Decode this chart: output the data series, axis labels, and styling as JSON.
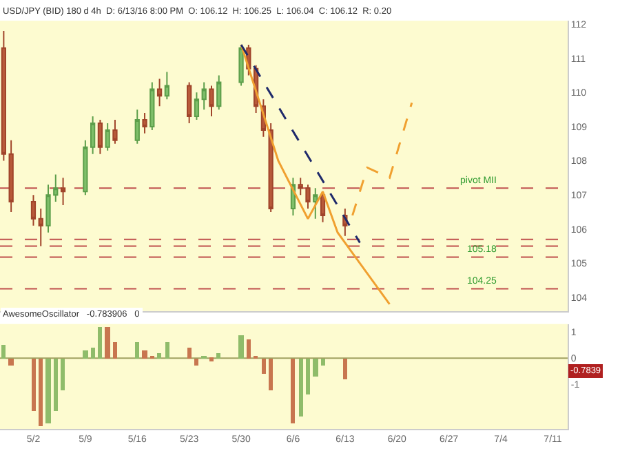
{
  "chart_data": [
    {
      "type": "candlestick",
      "title": "USD/JPY (BID) 180 d 4h  D: 6/13/16 8:00 PM  O: 106.12  H: 106.25  L: 106.04  C: 106.12  R: 0.20",
      "x": [
        "--04-28",
        "--04-29",
        "--05-02",
        "--05-03",
        "--05-04",
        "--05-05",
        "--05-06",
        "--05-09",
        "--05-10",
        "--05-11",
        "--05-12",
        "--05-13",
        "--05-16",
        "--05-17",
        "--05-18",
        "--05-19",
        "--05-20",
        "--05-23",
        "--05-24",
        "--05-25",
        "--05-26",
        "--05-27",
        "--05-30",
        "--05-31",
        "--06-01",
        "--06-02",
        "--06-03",
        "--06-06",
        "--06-07",
        "--06-08",
        "--06-09",
        "--06-10",
        "--06-13"
      ],
      "ohlc": [
        [
          111.3,
          111.8,
          108.0,
          108.2
        ],
        [
          108.2,
          108.6,
          106.5,
          106.8
        ],
        [
          106.8,
          107.0,
          106.1,
          106.3
        ],
        [
          106.3,
          106.6,
          105.5,
          106.1
        ],
        [
          106.1,
          107.3,
          105.9,
          107.0
        ],
        [
          107.0,
          107.6,
          106.8,
          107.2
        ],
        [
          107.2,
          107.5,
          106.7,
          107.1
        ],
        [
          107.1,
          108.6,
          107.0,
          108.4
        ],
        [
          108.4,
          109.3,
          108.2,
          109.1
        ],
        [
          109.1,
          109.2,
          108.2,
          108.4
        ],
        [
          108.4,
          109.1,
          108.3,
          108.9
        ],
        [
          108.9,
          109.2,
          108.5,
          108.6
        ],
        [
          108.6,
          109.5,
          108.5,
          109.2
        ],
        [
          109.2,
          109.4,
          108.8,
          109.0
        ],
        [
          109.0,
          110.3,
          108.9,
          110.1
        ],
        [
          110.1,
          110.4,
          109.6,
          109.9
        ],
        [
          109.9,
          110.6,
          109.8,
          110.2
        ],
        [
          110.2,
          110.3,
          109.1,
          109.3
        ],
        [
          109.3,
          110.0,
          109.2,
          109.8
        ],
        [
          109.8,
          110.3,
          109.5,
          110.1
        ],
        [
          110.1,
          110.2,
          109.3,
          109.6
        ],
        [
          109.6,
          110.5,
          109.5,
          110.3
        ],
        [
          110.3,
          111.4,
          110.2,
          111.3
        ],
        [
          111.3,
          111.4,
          110.5,
          110.7
        ],
        [
          110.7,
          110.8,
          109.4,
          109.6
        ],
        [
          109.6,
          109.8,
          108.7,
          108.9
        ],
        [
          108.9,
          109.1,
          106.5,
          106.6
        ],
        [
          106.6,
          107.5,
          106.4,
          107.3
        ],
        [
          107.3,
          107.5,
          107.0,
          107.2
        ],
        [
          107.2,
          107.3,
          106.6,
          106.8
        ],
        [
          106.8,
          107.2,
          106.3,
          107.0
        ],
        [
          107.0,
          107.1,
          106.2,
          106.4
        ],
        [
          106.4,
          106.6,
          105.8,
          106.1
        ]
      ],
      "series": [
        {
          "type": "line",
          "color": "#f0a030",
          "line_style": "solid",
          "x": [
            "--05-30",
            "--06-04",
            "--06-08",
            "--06-10",
            "--06-12",
            "--06-19"
          ],
          "values": [
            111.4,
            108.0,
            106.3,
            107.1,
            105.9,
            103.8
          ]
        },
        {
          "type": "line",
          "color": "#f0a030",
          "line_style": "dashed",
          "x": [
            "--06-14",
            "--06-16",
            "--06-19",
            "--06-22"
          ],
          "values": [
            106.4,
            107.8,
            107.5,
            109.7
          ]
        },
        {
          "type": "line",
          "color": "#1f2a6b",
          "line_style": "dashed",
          "x": [
            "--05-30",
            "--06-15"
          ],
          "values": [
            111.4,
            105.6
          ]
        }
      ],
      "ref_lines": [
        {
          "axis": "y",
          "value": 107.2,
          "label": "pivot MII",
          "color": "#c0504d",
          "line_style": "dashed"
        },
        {
          "axis": "y",
          "value": 105.7,
          "color": "#c0504d",
          "line_style": "dashed"
        },
        {
          "axis": "y",
          "value": 105.5,
          "color": "#c0504d",
          "line_style": "dashed"
        },
        {
          "axis": "y",
          "value": 105.18,
          "label": "105.18",
          "color": "#c0504d",
          "line_style": "dashed"
        },
        {
          "axis": "y",
          "value": 104.25,
          "label": "104.25",
          "color": "#c0504d",
          "line_style": "dashed"
        }
      ],
      "xlim": [
        "--04-27T12:00",
        "--07-13"
      ],
      "ylim": [
        103.6,
        112.1
      ],
      "yticks": [
        104,
        105,
        106,
        107,
        108,
        109,
        110,
        111,
        112
      ],
      "tick_labels": "y",
      "grid": false
    },
    {
      "type": "bar",
      "title": "AwesomeOscillator   -0.783906   0",
      "x": [
        "--04-28",
        "--04-29",
        "--05-02",
        "--05-03",
        "--05-04",
        "--05-05",
        "--05-06",
        "--05-09",
        "--05-10",
        "--05-11",
        "--05-12",
        "--05-13",
        "--05-16",
        "--05-17",
        "--05-18",
        "--05-19",
        "--05-20",
        "--05-23",
        "--05-24",
        "--05-25",
        "--05-26",
        "--05-27",
        "--05-30",
        "--05-31",
        "--06-01",
        "--06-02",
        "--06-03",
        "--06-06",
        "--06-07",
        "--06-08",
        "--06-09",
        "--06-10",
        "--06-13"
      ],
      "values": [
        0.5,
        -0.3,
        -2.0,
        -2.6,
        -2.5,
        -2.0,
        -1.2,
        0.3,
        0.4,
        1.2,
        1.2,
        0.6,
        0.6,
        0.3,
        0.1,
        0.2,
        0.6,
        0.4,
        -0.3,
        0.1,
        -0.1,
        0.2,
        0.9,
        0.7,
        0.1,
        -0.6,
        -1.2,
        -2.5,
        -2.2,
        -1.4,
        -0.7,
        -0.3,
        -0.7839
      ],
      "colors": [
        "#8fbc6a",
        "#c8764f",
        "#c8764f",
        "#c8764f",
        "#8fbc6a",
        "#8fbc6a",
        "#8fbc6a",
        "#8fbc6a",
        "#8fbc6a",
        "#8fbc6a",
        "#c8764f",
        "#c8764f",
        "#8fbc6a",
        "#c8764f",
        "#c8764f",
        "#8fbc6a",
        "#8fbc6a",
        "#c8764f",
        "#c8764f",
        "#8fbc6a",
        "#c8764f",
        "#8fbc6a",
        "#8fbc6a",
        "#c8764f",
        "#c8764f",
        "#c8764f",
        "#c8764f",
        "#c8764f",
        "#8fbc6a",
        "#8fbc6a",
        "#8fbc6a",
        "#8fbc6a",
        "#c8764f"
      ],
      "annotations": [
        "-0.7839"
      ],
      "xlim": [
        "--04-27T12:00",
        "--07-13"
      ],
      "xticks": [
        {
          "value": "--05-02",
          "label": "5/2"
        },
        {
          "value": "--05-09",
          "label": "5/9"
        },
        {
          "value": "--05-16",
          "label": "5/16"
        },
        {
          "value": "--05-23",
          "label": "5/23"
        },
        {
          "value": "--05-30",
          "label": "5/30"
        },
        {
          "value": "--06-06",
          "label": "6/6"
        },
        {
          "value": "--06-13",
          "label": "6/13"
        },
        {
          "value": "--06-20",
          "label": "6/20"
        },
        {
          "value": "--06-27",
          "label": "6/27"
        },
        {
          "value": "--07-04",
          "label": "7/4"
        },
        {
          "value": "--07-11",
          "label": "7/11"
        }
      ],
      "ylim": [
        -2.7,
        1.3
      ],
      "yticks": [
        -1,
        0,
        1
      ],
      "ref_lines": [
        {
          "axis": "y",
          "value": 0,
          "color": "#a0a060",
          "line_style": "solid"
        }
      ],
      "grid": false
    }
  ]
}
